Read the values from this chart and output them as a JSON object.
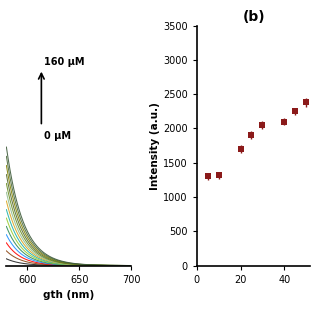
{
  "panel_b": {
    "title": "(b)",
    "x_data": [
      5,
      10,
      20,
      25,
      30,
      40,
      45,
      50
    ],
    "y_data": [
      1300,
      1320,
      1700,
      1900,
      2050,
      2100,
      2250,
      2380
    ],
    "y_err": [
      50,
      50,
      60,
      60,
      55,
      55,
      55,
      65
    ],
    "ylabel": "Intensity (a.u.)",
    "xlim": [
      0,
      52
    ],
    "ylim": [
      0,
      3500
    ],
    "yticks": [
      0,
      500,
      1000,
      1500,
      2000,
      2500,
      3000,
      3500
    ],
    "xticks": [
      0,
      20,
      40
    ],
    "dot_color": "#8B1A1A",
    "marker_size": 4
  },
  "panel_a": {
    "wavelengths_start": 570,
    "wavelengths_end": 700,
    "n_curves": 14,
    "annotation_top": "160 μM",
    "annotation_bottom": "0 μM",
    "xlabel": "gth (nm)",
    "xlim": [
      580,
      700
    ],
    "xticks": [
      600,
      650,
      700
    ],
    "colors": [
      "#222222",
      "#8B4513",
      "#FF0000",
      "#1E90FF",
      "#2E8B57",
      "#9ACD32",
      "#20B2AA",
      "#DAA520",
      "#8FBC8F",
      "#6B8E23",
      "#556B2F",
      "#808000",
      "#4B6B3A",
      "#3D5A3A"
    ]
  },
  "fig_width": 3.2,
  "fig_height": 3.2,
  "dpi": 100
}
